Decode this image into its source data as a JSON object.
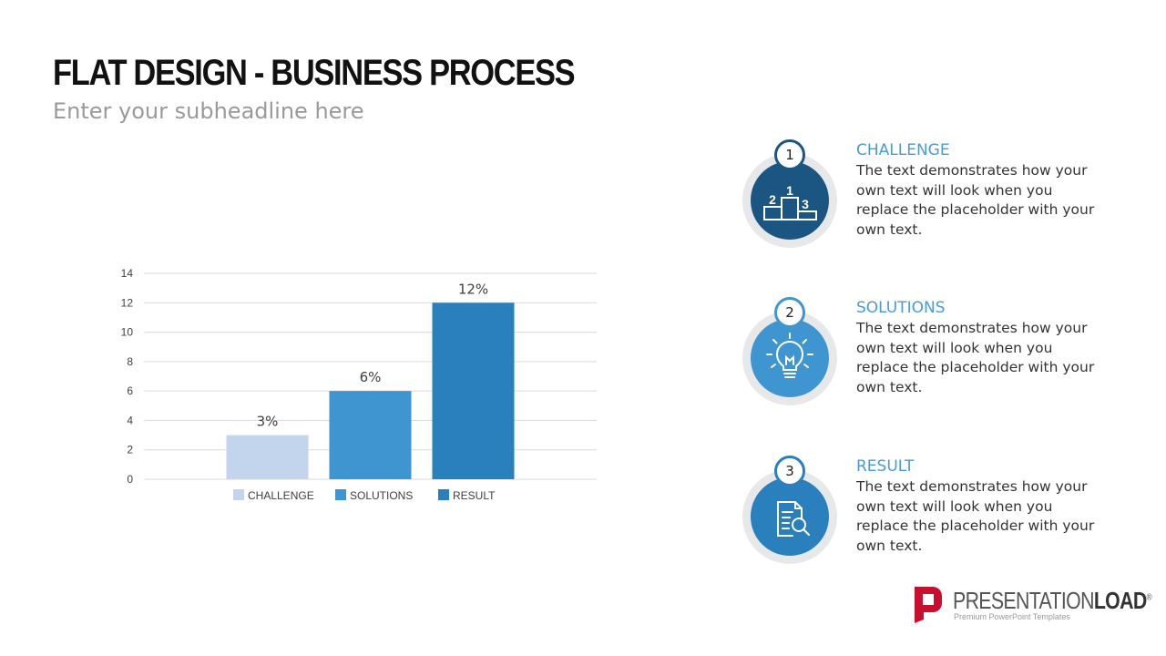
{
  "slide": {
    "title": "FLAT DESIGN - BUSINESS PROCESS",
    "subtitle": "Enter your subheadline here"
  },
  "chart_data": {
    "type": "bar",
    "categories": [
      "CHALLENGE",
      "SOLUTIONS",
      "RESULT"
    ],
    "values": [
      3,
      6,
      12
    ],
    "data_labels": [
      "3%",
      "6%",
      "12%"
    ],
    "colors": [
      "#c3d5ec",
      "#3e95d0",
      "#2980bc"
    ],
    "yticks": [
      0,
      2,
      4,
      6,
      8,
      10,
      12,
      14
    ],
    "ylim": [
      0,
      14
    ],
    "title": "",
    "xlabel": "",
    "ylabel": "",
    "grid": true,
    "legend_position": "bottom"
  },
  "steps": [
    {
      "number": "1",
      "title": "CHALLENGE",
      "text": "The text demonstrates how your own text will look when you replace the placeholder with your own text.",
      "icon": "podium-icon",
      "color": "#1a5681"
    },
    {
      "number": "2",
      "title": "SOLUTIONS",
      "text": "The text demonstrates how your own text will look when you replace the placeholder with your own text.",
      "icon": "lightbulb-icon",
      "color": "#3e95d0"
    },
    {
      "number": "3",
      "title": "RESULT",
      "text": "The text demonstrates how your own text will look when you replace the placeholder with your own text.",
      "icon": "document-search-icon",
      "color": "#2980bc"
    }
  ],
  "podium_numbers": [
    "1",
    "2",
    "3"
  ],
  "logo": {
    "brand_light": "PRESENTATION",
    "brand_bold": "LOAD",
    "registered": "®",
    "tagline": "Premium PowerPoint Templates",
    "color": "#c8102e"
  }
}
